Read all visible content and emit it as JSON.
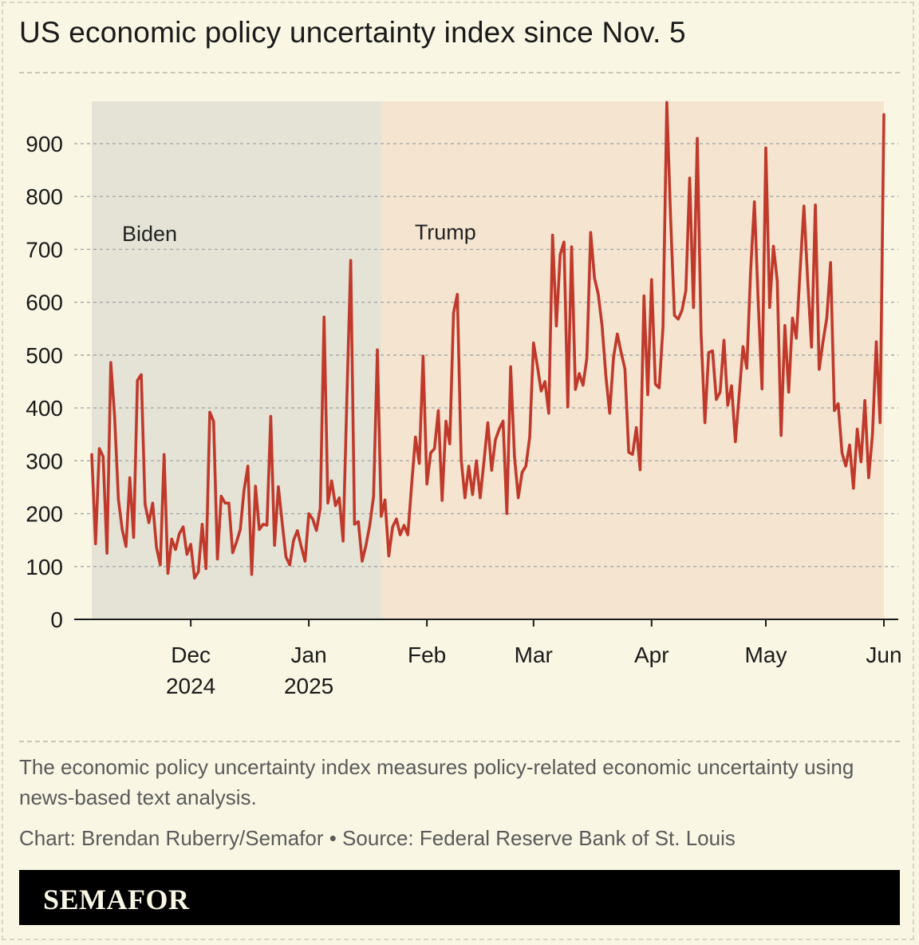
{
  "header": {
    "title": "US economic policy uncertainty index since Nov. 5"
  },
  "notes": {
    "description": "The economic policy uncertainty index measures policy-related economic uncertainty using news-based text analysis.",
    "credit": "Chart: Brendan Ruberry/Semafor • Source: Federal Reserve Bank of St. Louis"
  },
  "footer": {
    "brand": "SEMAFOR"
  },
  "colors": {
    "line": "#c0392b",
    "biden_shade": "#e4e3d6",
    "trump_shade": "#f4e4d0",
    "background": "#f9f6e4",
    "grid": "#a8a8a8",
    "footer": "#000000"
  },
  "chart_data": {
    "type": "line",
    "title": "US economic policy uncertainty index since Nov. 5",
    "xlabel": "",
    "ylabel": "",
    "ylim": [
      0,
      980
    ],
    "xlim": [
      "2024-11-05",
      "2025-06-01"
    ],
    "yticks": [
      0,
      100,
      200,
      300,
      400,
      500,
      600,
      700,
      800,
      900
    ],
    "xticks": [
      {
        "date": "2024-12-01",
        "label": "Dec",
        "sublabel": "2024"
      },
      {
        "date": "2025-01-01",
        "label": "Jan",
        "sublabel": "2025"
      },
      {
        "date": "2025-02-01",
        "label": "Feb",
        "sublabel": ""
      },
      {
        "date": "2025-03-01",
        "label": "Mar",
        "sublabel": ""
      },
      {
        "date": "2025-04-01",
        "label": "Apr",
        "sublabel": ""
      },
      {
        "date": "2025-05-01",
        "label": "May",
        "sublabel": ""
      },
      {
        "date": "2025-06-01",
        "label": "Jun",
        "sublabel": ""
      }
    ],
    "grid": "horizontal dashed",
    "regions": [
      {
        "label": "Biden",
        "start": "2024-11-05",
        "end": "2025-01-20"
      },
      {
        "label": "Trump",
        "start": "2025-01-20",
        "end": "2025-06-01"
      }
    ],
    "series": [
      {
        "start_date": "2024-11-05",
        "values": [
          312,
          143,
          323,
          308,
          125,
          486,
          385,
          227,
          170,
          138,
          268,
          155,
          452,
          463,
          218,
          183,
          220,
          136,
          103,
          312,
          87,
          152,
          132,
          162,
          175,
          123,
          142,
          78,
          90,
          180,
          96,
          392,
          375,
          114,
          233,
          220,
          220,
          126,
          146,
          170,
          245,
          290,
          85,
          252,
          170,
          180,
          178,
          384,
          140,
          251,
          183,
          118,
          103,
          150,
          168,
          138,
          110,
          200,
          190,
          168,
          210,
          572,
          220,
          262,
          215,
          230,
          148,
          420,
          679,
          180,
          185,
          110,
          140,
          178,
          233,
          510,
          195,
          226,
          120,
          175,
          190,
          160,
          178,
          160,
          255,
          345,
          295,
          498,
          256,
          315,
          323,
          395,
          225,
          375,
          332,
          580,
          615,
          303,
          230,
          290,
          236,
          300,
          230,
          300,
          372,
          282,
          340,
          360,
          375,
          200,
          478,
          308,
          230,
          278,
          290,
          345,
          523,
          480,
          432,
          450,
          390,
          727,
          555,
          690,
          714,
          402,
          705,
          435,
          465,
          443,
          494,
          732,
          646,
          615,
          555,
          460,
          390,
          495,
          540,
          505,
          474,
          316,
          312,
          363,
          283,
          612,
          425,
          643,
          445,
          438,
          554,
          978,
          758,
          575,
          568,
          585,
          622,
          835,
          590,
          910,
          540,
          372,
          505,
          508,
          416,
          430,
          528,
          405,
          442,
          336,
          425,
          516,
          475,
          658,
          790,
          600,
          436,
          892,
          590,
          706,
          640,
          348,
          556,
          430,
          570,
          532,
          660,
          782,
          640,
          515,
          784,
          473,
          525,
          570,
          675,
          395,
          408,
          315,
          290,
          330,
          248,
          360,
          298,
          414,
          268,
          350,
          525,
          372,
          955
        ]
      }
    ]
  }
}
